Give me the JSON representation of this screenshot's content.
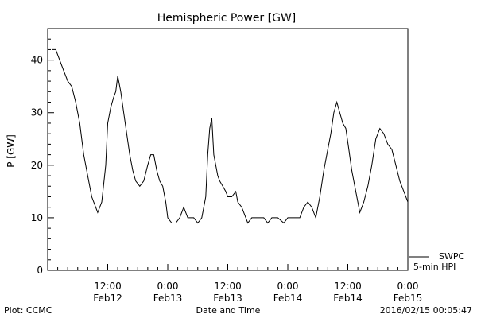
{
  "chart_data": {
    "type": "line",
    "title": "Hemispheric Power [GW]",
    "ylabel": "P [GW]",
    "xlabel": "Date and Time",
    "ylim": [
      0,
      46
    ],
    "xlim": [
      0,
      36
    ],
    "yticks": [
      0,
      10,
      20,
      30,
      40
    ],
    "xticks": [
      {
        "x": 6,
        "line1": "12:00",
        "line2": "Feb12"
      },
      {
        "x": 12,
        "line1": "0:00",
        "line2": "Feb13"
      },
      {
        "x": 18,
        "line1": "12:00",
        "line2": "Feb13"
      },
      {
        "x": 24,
        "line1": "0:00",
        "line2": "Feb14"
      },
      {
        "x": 30,
        "line1": "12:00",
        "line2": "Feb14"
      },
      {
        "x": 36,
        "line1": "0:00",
        "line2": "Feb15"
      }
    ],
    "x_unit_note": "",
    "series": [
      {
        "name": "",
        "color": "#000000",
        "points": [
          [
            0.4,
            42
          ],
          [
            0.8,
            42
          ],
          [
            1.2,
            40
          ],
          [
            1.6,
            38
          ],
          [
            2.0,
            36
          ],
          [
            2.4,
            35
          ],
          [
            2.8,
            32
          ],
          [
            3.2,
            28
          ],
          [
            3.6,
            22
          ],
          [
            4.0,
            18
          ],
          [
            4.4,
            14
          ],
          [
            4.8,
            12
          ],
          [
            5.0,
            11
          ],
          [
            5.4,
            13
          ],
          [
            5.8,
            20
          ],
          [
            6.0,
            28
          ],
          [
            6.3,
            31
          ],
          [
            6.6,
            33
          ],
          [
            6.8,
            34
          ],
          [
            7.0,
            37
          ],
          [
            7.3,
            34
          ],
          [
            7.6,
            30
          ],
          [
            7.9,
            26
          ],
          [
            8.2,
            22
          ],
          [
            8.5,
            19
          ],
          [
            8.8,
            17
          ],
          [
            9.2,
            16
          ],
          [
            9.6,
            17
          ],
          [
            10.0,
            20
          ],
          [
            10.3,
            22
          ],
          [
            10.6,
            22
          ],
          [
            10.9,
            19
          ],
          [
            11.2,
            17
          ],
          [
            11.5,
            16
          ],
          [
            11.8,
            13
          ],
          [
            12.0,
            10
          ],
          [
            12.4,
            9
          ],
          [
            12.8,
            9
          ],
          [
            13.2,
            10
          ],
          [
            13.6,
            12
          ],
          [
            14.0,
            10
          ],
          [
            14.6,
            10
          ],
          [
            15.0,
            9
          ],
          [
            15.4,
            10
          ],
          [
            15.8,
            14
          ],
          [
            16.0,
            22
          ],
          [
            16.2,
            27
          ],
          [
            16.4,
            29
          ],
          [
            16.6,
            22
          ],
          [
            16.8,
            20
          ],
          [
            17.0,
            18
          ],
          [
            17.2,
            17
          ],
          [
            17.5,
            16
          ],
          [
            17.8,
            15
          ],
          [
            18.0,
            14
          ],
          [
            18.4,
            14
          ],
          [
            18.8,
            15
          ],
          [
            19.0,
            13
          ],
          [
            19.4,
            12
          ],
          [
            19.8,
            10
          ],
          [
            20.0,
            9
          ],
          [
            20.4,
            10
          ],
          [
            21.0,
            10
          ],
          [
            21.6,
            10
          ],
          [
            22.0,
            9
          ],
          [
            22.4,
            10
          ],
          [
            23.0,
            10
          ],
          [
            23.6,
            9
          ],
          [
            24.0,
            10
          ],
          [
            24.6,
            10
          ],
          [
            25.2,
            10
          ],
          [
            25.6,
            12
          ],
          [
            26.0,
            13
          ],
          [
            26.4,
            12
          ],
          [
            26.8,
            10
          ],
          [
            27.2,
            14
          ],
          [
            27.6,
            19
          ],
          [
            28.0,
            23
          ],
          [
            28.3,
            26
          ],
          [
            28.6,
            30
          ],
          [
            28.9,
            32
          ],
          [
            29.2,
            30
          ],
          [
            29.5,
            28
          ],
          [
            29.8,
            27
          ],
          [
            30.1,
            23
          ],
          [
            30.4,
            19
          ],
          [
            30.7,
            16
          ],
          [
            31.0,
            13
          ],
          [
            31.2,
            11
          ],
          [
            31.6,
            13
          ],
          [
            32.0,
            16
          ],
          [
            32.4,
            20
          ],
          [
            32.8,
            25
          ],
          [
            33.2,
            27
          ],
          [
            33.6,
            26
          ],
          [
            34.0,
            24
          ],
          [
            34.4,
            23
          ],
          [
            34.8,
            20
          ],
          [
            35.2,
            17
          ],
          [
            35.6,
            15
          ],
          [
            36.0,
            13
          ]
        ]
      }
    ]
  },
  "legend": {
    "source_label": "SWPC",
    "product_label": "5-min HPI"
  },
  "footer": {
    "plot_credit": "Plot: CCMC",
    "timestamp": "2016/02/15 00:05:47"
  }
}
